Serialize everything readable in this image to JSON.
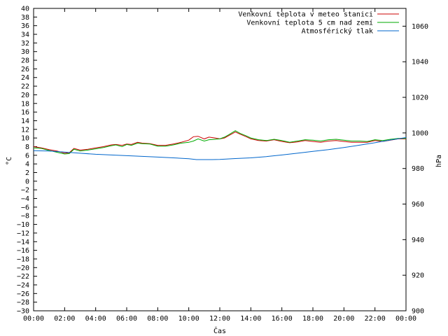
{
  "chart_data": {
    "type": "line",
    "xlabel": "Čas",
    "ylabel": "°C",
    "y2label": "hPa",
    "x_tick_labels": [
      "00:00",
      "02:00",
      "04:00",
      "06:00",
      "08:00",
      "10:00",
      "12:00",
      "14:00",
      "16:00",
      "18:00",
      "20:00",
      "22:00",
      "00:00"
    ],
    "xlim": [
      0,
      24
    ],
    "ylim": [
      -30,
      40
    ],
    "y_tick_step": 2,
    "y2lim": [
      900,
      1070
    ],
    "y2_ticks": [
      900,
      920,
      940,
      960,
      980,
      1000,
      1020,
      1040,
      1060
    ],
    "grid": false,
    "legend_position": "top-right",
    "series": [
      {
        "name": "Venkovní teplota v meteo stanici",
        "axis": "left",
        "color": "#cc0000",
        "x": [
          0,
          0.5,
          1,
          1.5,
          2,
          2.3,
          2.6,
          3,
          3.5,
          4,
          4.5,
          5,
          5.3,
          5.7,
          6,
          6.3,
          6.7,
          7,
          7.5,
          8,
          8.5,
          9,
          9.5,
          10,
          10.3,
          10.6,
          11,
          11.3,
          11.7,
          12,
          12.3,
          12.6,
          13,
          13.3,
          13.7,
          14,
          14.5,
          15,
          15.5,
          16,
          16.5,
          17,
          17.5,
          18,
          18.5,
          19,
          19.5,
          20,
          20.5,
          21,
          21.5,
          22,
          22.5,
          23,
          23.5,
          24
        ],
        "y": [
          8,
          7.7,
          7.3,
          7.0,
          6.5,
          6.6,
          7.6,
          7.2,
          7.4,
          7.7,
          8.0,
          8.4,
          8.5,
          8.3,
          8.6,
          8.5,
          9.0,
          8.8,
          8.7,
          8.3,
          8.3,
          8.6,
          9.0,
          9.5,
          10.3,
          10.4,
          9.8,
          10.2,
          10.0,
          9.8,
          10.0,
          10.6,
          11.4,
          10.9,
          10.3,
          9.8,
          9.4,
          9.3,
          9.6,
          9.2,
          8.9,
          9.1,
          9.4,
          9.2,
          9.0,
          9.3,
          9.4,
          9.2,
          9.0,
          9.0,
          9.0,
          9.4,
          9.2,
          9.5,
          9.8,
          9.8
        ]
      },
      {
        "name": "Venkovní teplota 5 cm nad zemí",
        "axis": "left",
        "color": "#00aa00",
        "x": [
          0,
          0.5,
          1,
          1.5,
          2,
          2.3,
          2.6,
          3,
          3.5,
          4,
          4.5,
          5,
          5.3,
          5.7,
          6,
          6.3,
          6.7,
          7,
          7.5,
          8,
          8.5,
          9,
          9.5,
          10,
          10.3,
          10.6,
          11,
          11.3,
          11.7,
          12,
          12.3,
          12.6,
          13,
          13.3,
          13.7,
          14,
          14.5,
          15,
          15.5,
          16,
          16.5,
          17,
          17.5,
          18,
          18.5,
          19,
          19.5,
          20,
          20.5,
          21,
          21.5,
          22,
          22.5,
          23,
          23.5,
          24
        ],
        "y": [
          7.7,
          7.6,
          7.1,
          6.7,
          6.3,
          6.4,
          7.4,
          7.0,
          7.2,
          7.5,
          7.8,
          8.2,
          8.4,
          8.0,
          8.5,
          8.3,
          8.8,
          8.7,
          8.6,
          8.1,
          8.1,
          8.4,
          8.8,
          9.0,
          9.3,
          9.8,
          9.3,
          9.6,
          9.7,
          9.8,
          10.2,
          10.8,
          11.7,
          11.1,
          10.5,
          10.0,
          9.6,
          9.4,
          9.7,
          9.4,
          9.0,
          9.3,
          9.6,
          9.5,
          9.3,
          9.6,
          9.7,
          9.5,
          9.3,
          9.3,
          9.2,
          9.6,
          9.4,
          9.7,
          9.9,
          9.9
        ]
      },
      {
        "name": "Atmosférický tlak",
        "axis": "right",
        "color": "#0066cc",
        "x": [
          0,
          1,
          2,
          3,
          4,
          5,
          6,
          7,
          8,
          9,
          10,
          10.5,
          11,
          11.5,
          12,
          13,
          14,
          15,
          16,
          17,
          18,
          19,
          20,
          21,
          22,
          23,
          24
        ],
        "y": [
          990,
          989.8,
          989.2,
          988.6,
          988.0,
          987.6,
          987.2,
          986.8,
          986.4,
          986.0,
          985.5,
          985.0,
          985.0,
          985.0,
          985.1,
          985.6,
          986.0,
          986.7,
          987.6,
          988.6,
          989.6,
          990.6,
          991.8,
          993.1,
          994.5,
          996.0,
          997.4
        ]
      }
    ]
  }
}
